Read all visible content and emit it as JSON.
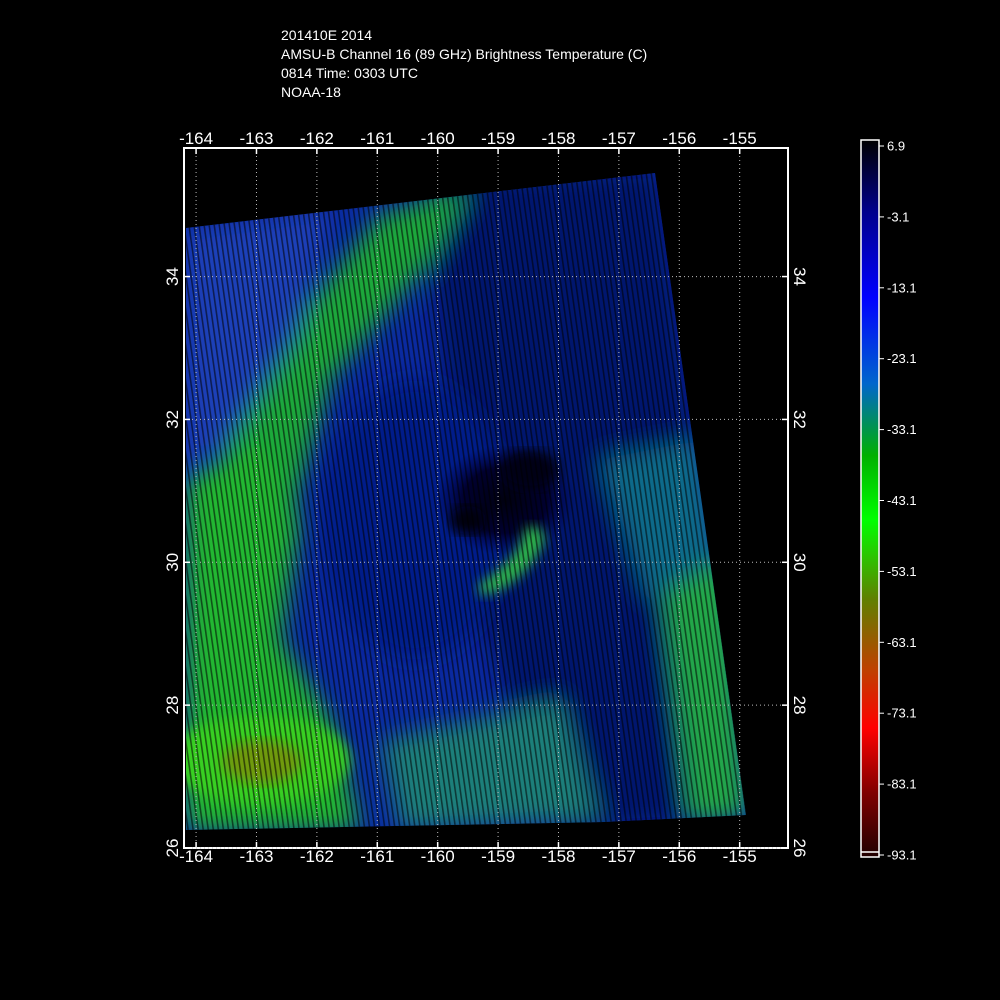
{
  "header": {
    "storm_line": "201410E 2014",
    "product_line": "AMSU-B Channel 16 (89 GHz) Brightness Temperature (C)",
    "time_line": "0814 Time: 0303 UTC",
    "satellite_line": "NOAA-18"
  },
  "map": {
    "lon_ticks": [
      "-164",
      "-163",
      "-162",
      "-161",
      "-160",
      "-159",
      "-158",
      "-157",
      "-156",
      "-155"
    ],
    "lat_ticks": [
      "34",
      "32",
      "30",
      "28",
      "26"
    ],
    "lon_range": [
      -164.2,
      -154.2
    ],
    "lat_range": [
      26,
      35.8
    ],
    "grid": true
  },
  "colorbar": {
    "labels": [
      "6.9",
      "-3.1",
      "-13.1",
      "-23.1",
      "-33.1",
      "-43.1",
      "-53.1",
      "-63.1",
      "-73.1",
      "-83.1",
      "-93.1"
    ],
    "range": [
      -93.1,
      6.9
    ],
    "colors": [
      "#000000",
      "#00008c",
      "#0000ff",
      "#0066cc",
      "#00b000",
      "#00ff00",
      "#608000",
      "#c04000",
      "#ff0000",
      "#800000",
      "#200000"
    ]
  }
}
